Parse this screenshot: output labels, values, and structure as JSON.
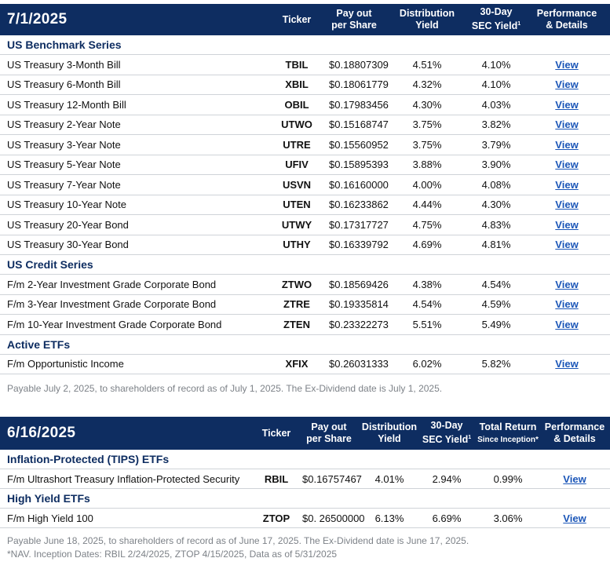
{
  "table1": {
    "date": "7/1/2025",
    "headers": {
      "ticker": "Ticker",
      "payout_l1": "Pay out",
      "payout_l2": "per Share",
      "dist_l1": "Distribution",
      "dist_l2": "Yield",
      "sec_l1": "30-Day",
      "sec_l2": "SEC Yield",
      "sec_sup": "1",
      "perf_l1": "Performance",
      "perf_l2": "& Details"
    },
    "sections": [
      {
        "title": "US Benchmark Series",
        "rows": [
          {
            "name": "US Treasury 3-Month Bill",
            "ticker": "TBIL",
            "payout": "$0.18807309",
            "dist": "4.51%",
            "sec": "4.10%",
            "link": "View"
          },
          {
            "name": "US Treasury 6-Month Bill",
            "ticker": "XBIL",
            "payout": "$0.18061779",
            "dist": "4.32%",
            "sec": "4.10%",
            "link": "View"
          },
          {
            "name": "US Treasury 12-Month Bill",
            "ticker": "OBIL",
            "payout": "$0.17983456",
            "dist": "4.30%",
            "sec": "4.03%",
            "link": "View"
          },
          {
            "name": "US Treasury 2-Year Note",
            "ticker": "UTWO",
            "payout": "$0.15168747",
            "dist": "3.75%",
            "sec": "3.82%",
            "link": "View"
          },
          {
            "name": "US Treasury 3-Year Note",
            "ticker": "UTRE",
            "payout": "$0.15560952",
            "dist": "3.75%",
            "sec": "3.79%",
            "link": "View"
          },
          {
            "name": "US Treasury 5-Year Note",
            "ticker": "UFIV",
            "payout": "$0.15895393",
            "dist": "3.88%",
            "sec": "3.90%",
            "link": "View"
          },
          {
            "name": "US Treasury 7-Year Note",
            "ticker": "USVN",
            "payout": "$0.16160000",
            "dist": "4.00%",
            "sec": "4.08%",
            "link": "View"
          },
          {
            "name": "US Treasury 10-Year Note",
            "ticker": "UTEN",
            "payout": "$0.16233862",
            "dist": "4.44%",
            "sec": "4.30%",
            "link": "View"
          },
          {
            "name": "US Treasury 20-Year Bond",
            "ticker": "UTWY",
            "payout": "$0.17317727",
            "dist": "4.75%",
            "sec": "4.83%",
            "link": "View"
          },
          {
            "name": "US Treasury 30-Year Bond",
            "ticker": "UTHY",
            "payout": "$0.16339792",
            "dist": "4.69%",
            "sec": "4.81%",
            "link": "View"
          }
        ]
      },
      {
        "title": "US Credit Series",
        "rows": [
          {
            "name": "F/m 2-Year Investment Grade Corporate Bond",
            "ticker": "ZTWO",
            "payout": "$0.18569426",
            "dist": "4.38%",
            "sec": "4.54%",
            "link": "View"
          },
          {
            "name": "F/m 3-Year Investment Grade Corporate Bond",
            "ticker": "ZTRE",
            "payout": "$0.19335814",
            "dist": "4.54%",
            "sec": "4.59%",
            "link": "View"
          },
          {
            "name": "F/m 10-Year Investment Grade Corporate Bond",
            "ticker": "ZTEN",
            "payout": "$0.23322273",
            "dist": "5.51%",
            "sec": "5.49%",
            "link": "View"
          }
        ]
      },
      {
        "title": "Active ETFs",
        "rows": [
          {
            "name": "F/m Opportunistic Income",
            "ticker": "XFIX",
            "payout": "$0.26031333",
            "dist": "6.02%",
            "sec": "5.82%",
            "link": "View"
          }
        ]
      }
    ],
    "note": "Payable July 2, 2025, to shareholders of record as of July 1, 2025. The Ex-Dividend date is July 1, 2025."
  },
  "table2": {
    "date": "6/16/2025",
    "headers": {
      "ticker": "Ticker",
      "payout_l1": "Pay out",
      "payout_l2": "per Share",
      "dist_l1": "Distribution",
      "dist_l2": "Yield",
      "sec_l1": "30-Day",
      "sec_l2": "SEC Yield",
      "sec_sup": "1",
      "tr_l1": "Total Return",
      "tr_l2": "Since Inception*",
      "perf_l1": "Performance",
      "perf_l2": "& Details"
    },
    "sections": [
      {
        "title": "Inflation-Protected (TIPS) ETFs",
        "rows": [
          {
            "name": "F/m Ultrashort Treasury Inflation-Protected Security",
            "ticker": "RBIL",
            "payout": "$0.16757467",
            "dist": "4.01%",
            "sec": "2.94%",
            "tr": "0.99%",
            "link": "View"
          }
        ]
      },
      {
        "title": "High Yield ETFs",
        "rows": [
          {
            "name": "F/m High Yield 100",
            "ticker": "ZTOP",
            "payout": "$0. 26500000",
            "dist": "6.13%",
            "sec": "6.69%",
            "tr": "3.06%",
            "link": "View"
          }
        ]
      }
    ],
    "note1": "Payable June 18, 2025, to shareholders of record as of June 17, 2025. The Ex-Dividend date is June 17, 2025.",
    "note2": "*NAV. Inception Dates: RBIL 2/24/2025, ZTOP 4/15/2025, Data as of 5/31/2025"
  }
}
